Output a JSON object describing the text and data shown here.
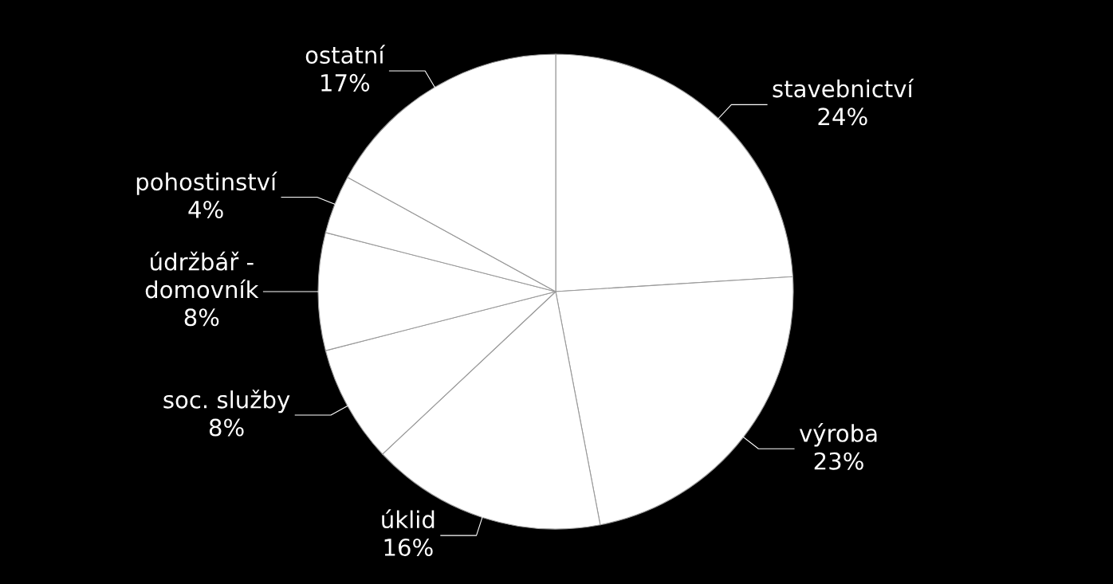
{
  "chart_data": {
    "type": "pie",
    "categories": [
      "stavebnictví",
      "výroba",
      "úklid",
      "soc. služby",
      "údržbář -\ndomovník",
      "pohostinství",
      "ostatní"
    ],
    "values": [
      24,
      23,
      16,
      8,
      8,
      4,
      17
    ],
    "value_labels": [
      "24%",
      "23%",
      "16%",
      "8%",
      "8%",
      "4%",
      "17%"
    ],
    "colors": [
      "#ffffff",
      "#ffffff",
      "#ffffff",
      "#ffffff",
      "#ffffff",
      "#ffffff",
      "#ffffff"
    ],
    "legend": false
  }
}
